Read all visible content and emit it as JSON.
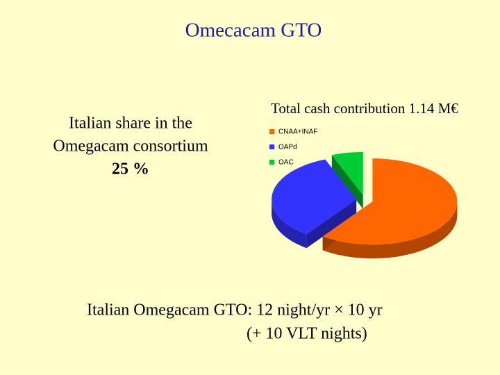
{
  "slide": {
    "title": "Omecacam GTO",
    "left_text": [
      "Italian share in the",
      "Omegacam consortium",
      "25 %"
    ],
    "footer": [
      "Italian Omegacam GTO:  12 night/yr × 10 yr",
      "(+ 10 VLT nights)"
    ]
  },
  "chart_data": {
    "type": "pie",
    "title": "Total cash contribution 1.14 M€",
    "categories": [
      "CNAA+INAF",
      "OAPd",
      "OAC"
    ],
    "values": [
      60,
      34,
      6
    ],
    "colors": [
      "#ff6600",
      "#3333ff",
      "#00cc33"
    ],
    "legend": "top-left"
  }
}
